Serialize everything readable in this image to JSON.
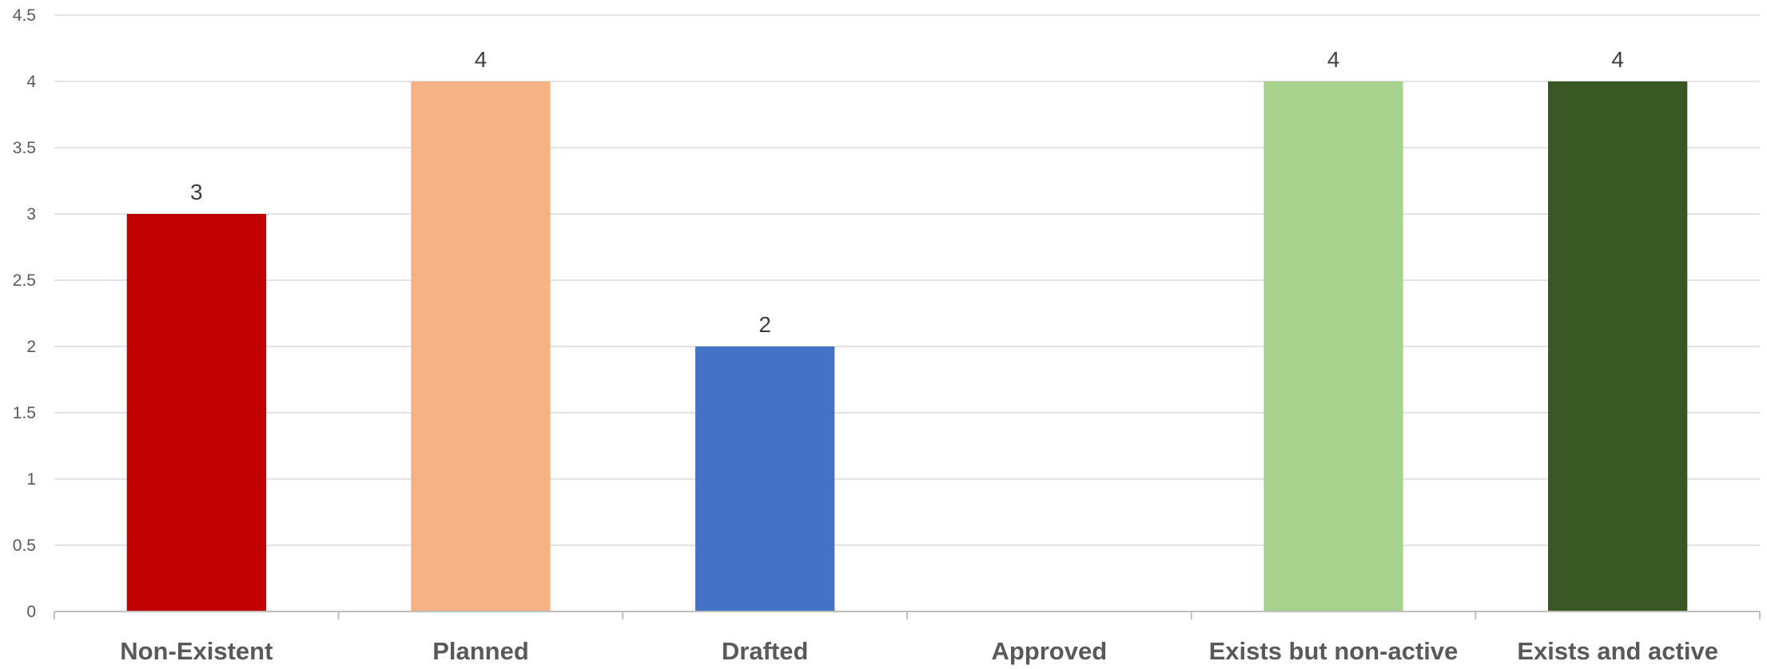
{
  "chart_data": {
    "type": "bar",
    "categories": [
      "Non-Existent",
      "Planned",
      "Drafted",
      "Approved",
      "Exists but non-active",
      "Exists and active"
    ],
    "values": [
      3,
      4,
      2,
      null,
      4,
      4
    ],
    "data_labels": [
      "3",
      "4",
      "2",
      "",
      "4",
      "4"
    ],
    "colors": [
      "#C00000",
      "#F4B183",
      "#4472C4",
      "#A9A9A9",
      "#A9D18E",
      "#385723"
    ],
    "title": "",
    "xlabel": "",
    "ylabel": "",
    "ylim": [
      0,
      4.5
    ],
    "yticks": [
      0,
      0.5,
      1,
      1.5,
      2,
      2.5,
      3,
      3.5,
      4,
      4.5
    ],
    "ytick_labels": [
      "0",
      "0.5",
      "1",
      "1.5",
      "2",
      "2.5",
      "3",
      "3.5",
      "4",
      "4.5"
    ],
    "grid": true,
    "legend": "none"
  }
}
